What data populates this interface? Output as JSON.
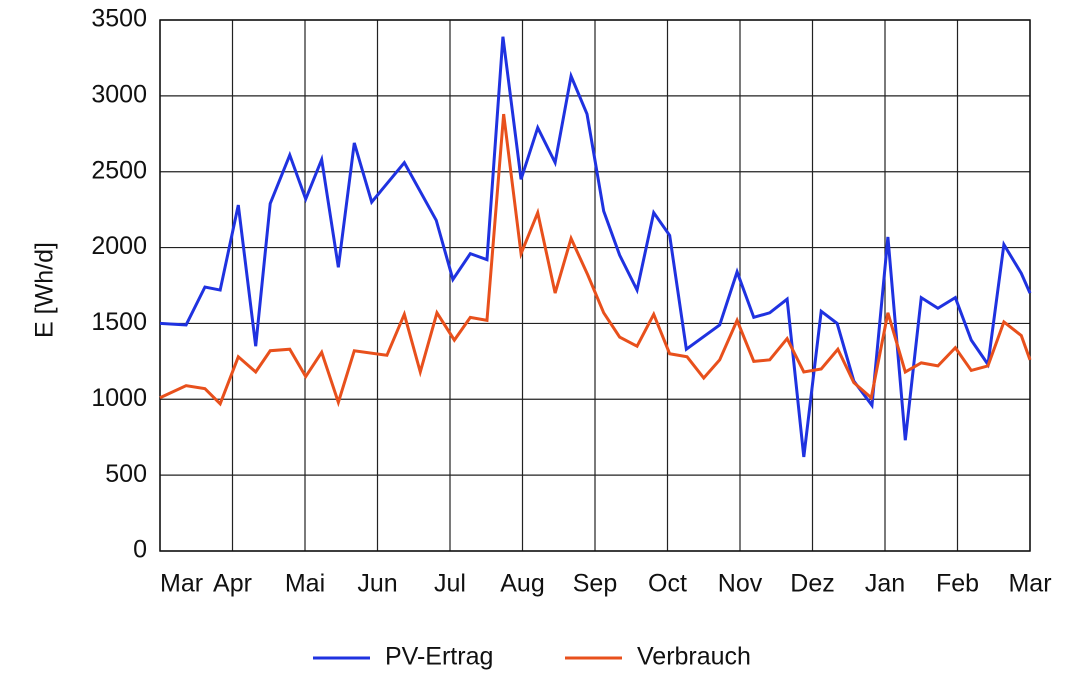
{
  "chart_data": {
    "type": "line",
    "y_label": "E [Wh/d]",
    "xlim": [
      0,
      12
    ],
    "xticks": [
      {
        "value": 0,
        "label": "Mar"
      },
      {
        "value": 1,
        "label": "Apr"
      },
      {
        "value": 2,
        "label": "Mai"
      },
      {
        "value": 3,
        "label": "Jun"
      },
      {
        "value": 4,
        "label": "Jul"
      },
      {
        "value": 5,
        "label": "Aug"
      },
      {
        "value": 6,
        "label": "Sep"
      },
      {
        "value": 7,
        "label": "Oct"
      },
      {
        "value": 8,
        "label": "Nov"
      },
      {
        "value": 9,
        "label": "Dez"
      },
      {
        "value": 10,
        "label": "Jan"
      },
      {
        "value": 11,
        "label": "Feb"
      },
      {
        "value": 12,
        "label": "Mar"
      }
    ],
    "ylim": [
      0,
      3500
    ],
    "yticks": [
      0,
      500,
      1000,
      1500,
      2000,
      2500,
      3000,
      3500
    ],
    "grid": true,
    "legend": "bottom",
    "series": [
      {
        "name": "PV-Ertrag",
        "color": "#1f32e0",
        "x": [
          0,
          0.36,
          0.62,
          0.83,
          1.08,
          1.32,
          1.52,
          1.79,
          2.01,
          2.23,
          2.46,
          2.68,
          2.92,
          3.37,
          3.81,
          4.04,
          4.28,
          4.51,
          4.73,
          4.98,
          5.21,
          5.45,
          5.67,
          5.89,
          6.12,
          6.34,
          6.58,
          6.81,
          7.03,
          7.26,
          7.72,
          7.96,
          8.19,
          8.41,
          8.65,
          8.88,
          9.12,
          9.34,
          9.57,
          9.82,
          10.04,
          10.28,
          10.5,
          10.73,
          10.97,
          11.19,
          11.42,
          11.64,
          11.88,
          12
        ],
        "values": [
          1500,
          1490,
          1740,
          1720,
          2280,
          1350,
          2290,
          2610,
          2320,
          2580,
          1870,
          2690,
          2300,
          2560,
          2180,
          1790,
          1960,
          1920,
          3390,
          2450,
          2790,
          2560,
          3130,
          2880,
          2240,
          1950,
          1720,
          2230,
          2080,
          1330,
          1490,
          1840,
          1540,
          1570,
          1660,
          620,
          1580,
          1500,
          1120,
          960,
          2070,
          730,
          1670,
          1600,
          1670,
          1390,
          1230,
          2020,
          1830,
          1700
        ]
      },
      {
        "name": "Verbrauch",
        "color": "#e8501c",
        "x": [
          0,
          0.36,
          0.62,
          0.83,
          1.08,
          1.32,
          1.52,
          1.79,
          2.01,
          2.23,
          2.46,
          2.68,
          3.13,
          3.37,
          3.59,
          3.82,
          4.06,
          4.28,
          4.51,
          4.74,
          4.98,
          5.21,
          5.45,
          5.67,
          5.9,
          6.12,
          6.34,
          6.58,
          6.81,
          7.03,
          7.27,
          7.5,
          7.72,
          7.96,
          8.19,
          8.41,
          8.65,
          8.88,
          9.12,
          9.35,
          9.57,
          9.81,
          10.04,
          10.28,
          10.5,
          10.73,
          10.97,
          11.19,
          11.42,
          11.64,
          11.88,
          12
        ],
        "values": [
          1010,
          1090,
          1070,
          970,
          1280,
          1180,
          1320,
          1330,
          1150,
          1310,
          980,
          1320,
          1290,
          1560,
          1180,
          1570,
          1390,
          1540,
          1520,
          2880,
          1960,
          2230,
          1700,
          2060,
          1820,
          1570,
          1410,
          1350,
          1560,
          1300,
          1280,
          1140,
          1260,
          1520,
          1250,
          1260,
          1400,
          1180,
          1200,
          1330,
          1110,
          1010,
          1570,
          1180,
          1240,
          1220,
          1340,
          1190,
          1220,
          1510,
          1420,
          1260
        ]
      }
    ]
  }
}
